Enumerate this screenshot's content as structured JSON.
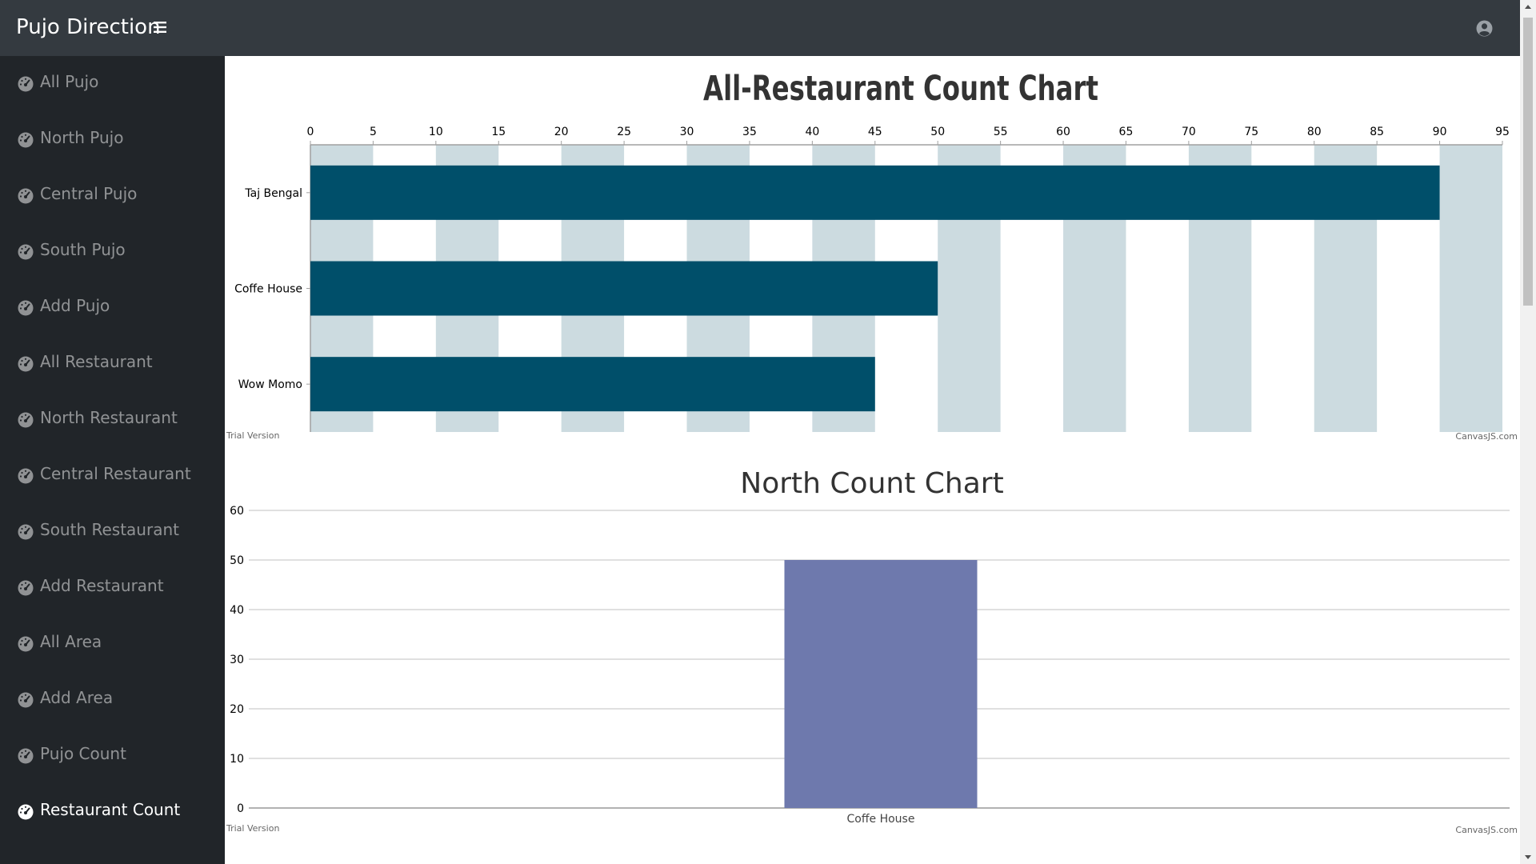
{
  "app": {
    "brand": "Pujo Direction"
  },
  "icons": {
    "menu": "hamburger-icon",
    "user": "user-circle-icon",
    "nav": "tachometer-icon"
  },
  "sidebar": {
    "items": [
      {
        "label": "All Pujo",
        "active": false
      },
      {
        "label": "North Pujo",
        "active": false
      },
      {
        "label": "Central Pujo",
        "active": false
      },
      {
        "label": "South Pujo",
        "active": false
      },
      {
        "label": "Add Pujo",
        "active": false
      },
      {
        "label": "All Restaurant",
        "active": false
      },
      {
        "label": "North Restaurant",
        "active": false
      },
      {
        "label": "Central Restaurant",
        "active": false
      },
      {
        "label": "South Restaurant",
        "active": false
      },
      {
        "label": "Add Restaurant",
        "active": false
      },
      {
        "label": "All Area",
        "active": false
      },
      {
        "label": "Add Area",
        "active": false
      },
      {
        "label": "Pujo Count",
        "active": false
      },
      {
        "label": "Restaurant Count",
        "active": true
      }
    ]
  },
  "colors": {
    "topbar": "#343a40",
    "sidebar": "#212529",
    "bar1": "#004f6a",
    "stripe": "#ccdbe0",
    "bar2": "#6e79ad"
  },
  "chart_data": [
    {
      "type": "bar",
      "orientation": "horizontal",
      "title": "All-Restaurant Count Chart",
      "categories": [
        "Wow Momo",
        "Coffe House",
        "Taj Bengal"
      ],
      "values": [
        45,
        50,
        90
      ],
      "xlim": [
        0,
        95
      ],
      "ticks": [
        0,
        5,
        10,
        15,
        20,
        25,
        30,
        35,
        40,
        45,
        50,
        55,
        60,
        65,
        70,
        75,
        80,
        85,
        90,
        95
      ],
      "grid": "alternating-stripes",
      "watermark_left": "Trial Version",
      "watermark_right": "CanvasJS.com"
    },
    {
      "type": "bar",
      "title": "North Count Chart",
      "categories": [
        "Coffe House"
      ],
      "values": [
        50
      ],
      "ylim": [
        0,
        60
      ],
      "ticks": [
        0,
        10,
        20,
        30,
        40,
        50,
        60
      ],
      "grid": true,
      "watermark_left": "Trial Version",
      "watermark_right": "CanvasJS.com"
    }
  ]
}
